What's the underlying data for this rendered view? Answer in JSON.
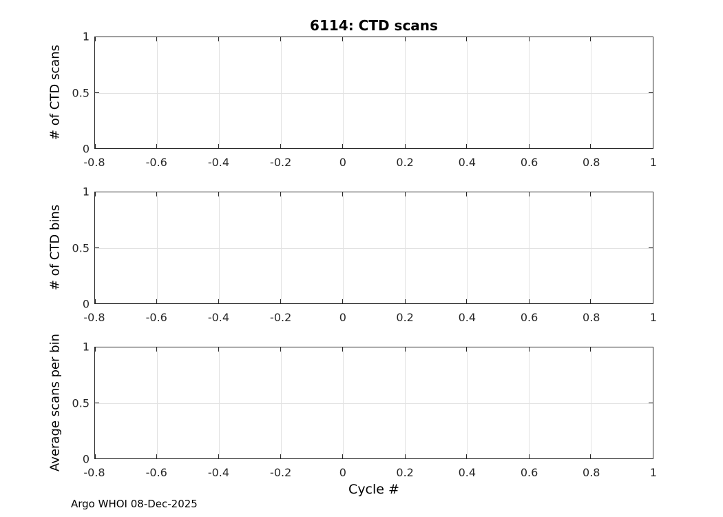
{
  "figure": {
    "title": "6114: CTD scans",
    "xlabel": "Cycle #",
    "footer": "Argo WHOI 08-Dec-2025"
  },
  "colors": {
    "axis": "#262626",
    "grid": "#e2e2e2",
    "tick_text": "#262626",
    "label_text": "#000000",
    "background": "#ffffff"
  },
  "chart_data": [
    {
      "type": "line",
      "title": "6114: CTD scans",
      "ylabel": "# of CTD scans",
      "xlabel": "",
      "xlim": [
        -0.8,
        1
      ],
      "ylim": [
        0,
        1
      ],
      "x_ticks": [
        -0.8,
        -0.6,
        -0.4,
        -0.2,
        0,
        0.2,
        0.4,
        0.6,
        0.8,
        1
      ],
      "x_tick_labels": [
        "-0.8",
        "-0.6",
        "-0.4",
        "-0.2",
        "0",
        "0.2",
        "0.4",
        "0.6",
        "0.8",
        "1"
      ],
      "y_ticks": [
        0,
        0.5,
        1
      ],
      "y_tick_labels": [
        "0",
        "0.5",
        "1"
      ],
      "grid": true,
      "legend": "none",
      "series": []
    },
    {
      "type": "line",
      "title": "",
      "ylabel": "# of CTD bins",
      "xlabel": "",
      "xlim": [
        -0.8,
        1
      ],
      "ylim": [
        0,
        1
      ],
      "x_ticks": [
        -0.8,
        -0.6,
        -0.4,
        -0.2,
        0,
        0.2,
        0.4,
        0.6,
        0.8,
        1
      ],
      "x_tick_labels": [
        "-0.8",
        "-0.6",
        "-0.4",
        "-0.2",
        "0",
        "0.2",
        "0.4",
        "0.6",
        "0.8",
        "1"
      ],
      "y_ticks": [
        0,
        0.5,
        1
      ],
      "y_tick_labels": [
        "0",
        "0.5",
        "1"
      ],
      "grid": true,
      "legend": "none",
      "series": []
    },
    {
      "type": "line",
      "title": "",
      "ylabel": "Average scans per bin",
      "xlabel": "Cycle #",
      "xlim": [
        -0.8,
        1
      ],
      "ylim": [
        0,
        1
      ],
      "x_ticks": [
        -0.8,
        -0.6,
        -0.4,
        -0.2,
        0,
        0.2,
        0.4,
        0.6,
        0.8,
        1
      ],
      "x_tick_labels": [
        "-0.8",
        "-0.6",
        "-0.4",
        "-0.2",
        "0",
        "0.2",
        "0.4",
        "0.6",
        "0.8",
        "1"
      ],
      "y_ticks": [
        0,
        0.5,
        1
      ],
      "y_tick_labels": [
        "0",
        "0.5",
        "1"
      ],
      "grid": true,
      "legend": "none",
      "series": []
    }
  ]
}
